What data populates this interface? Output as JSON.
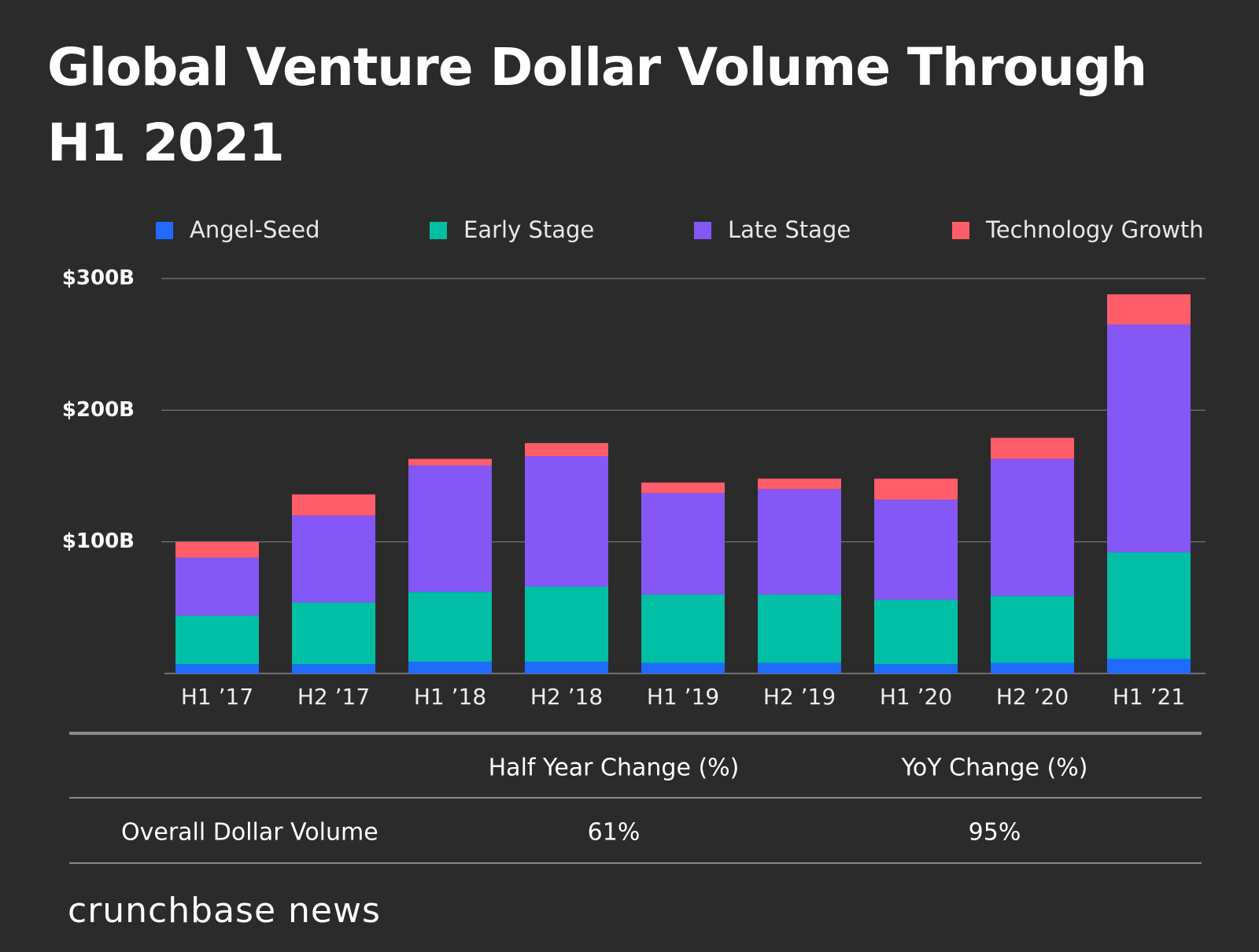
{
  "chart_data": {
    "type": "stacked-bar",
    "title": "Global Venture Dollar Volume Through H1 2021",
    "categories": [
      "H1 ’17",
      "H2 ’17",
      "H1 ’18",
      "H2 ’18",
      "H1 ’19",
      "H2 ’19",
      "H1 ’20",
      "H2 ’20",
      "H1 ’21"
    ],
    "series": [
      {
        "name": "Angel-Seed",
        "color": "#1f6bff",
        "values": [
          7,
          7,
          9,
          9,
          8,
          8,
          7,
          8,
          11
        ]
      },
      {
        "name": "Early Stage",
        "color": "#00bfa5",
        "values": [
          37,
          47,
          53,
          57,
          52,
          52,
          49,
          51,
          81
        ]
      },
      {
        "name": "Late Stage",
        "color": "#8557f7",
        "values": [
          44,
          66,
          96,
          99,
          77,
          80,
          76,
          104,
          173
        ]
      },
      {
        "name": "Technology Growth",
        "color": "#ff5d6a",
        "values": [
          12,
          16,
          5,
          10,
          8,
          8,
          16,
          16,
          23
        ]
      }
    ],
    "ylim": [
      0,
      300
    ],
    "yticks": [
      {
        "value": 100,
        "label": "$100B"
      },
      {
        "value": 200,
        "label": "$200B"
      },
      {
        "value": 300,
        "label": "$300B"
      }
    ],
    "grid": true,
    "legend": "top"
  },
  "table": {
    "header": [
      "Half Year Change (%)",
      "YoY Change (%)"
    ],
    "rows": [
      [
        "Overall Dollar Volume",
        "61%",
        "95%"
      ]
    ]
  },
  "footer": {
    "brand": "crunchbase news"
  }
}
